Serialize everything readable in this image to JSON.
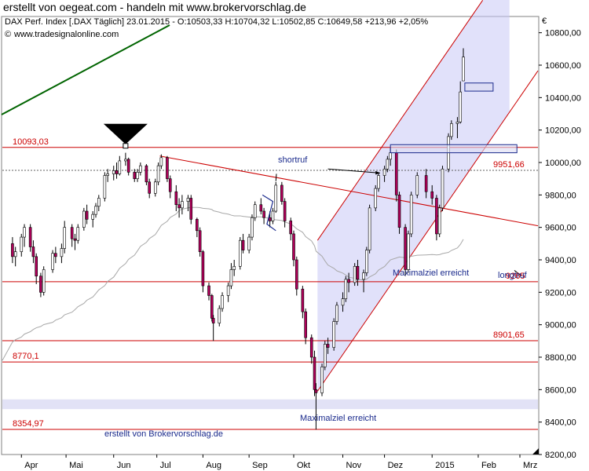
{
  "page_title": "erstellt von oegeat.com - handeln mit www.brokervorschlag.de",
  "chart_data": {
    "type": "candlestick",
    "header": {
      "line1": "DAX Perf. Index [.DAX Täglich] 23.01.2015 - O:10503,33 H:10704,32 L:10502,85 C:10649,58 +213,96 +2,05%",
      "line2": "www.tradesignalonline.com",
      "copyright_symbol": "©"
    },
    "currency_symbol": "€",
    "ylim": [
      8200,
      10900
    ],
    "y_ticks": [
      "8200,00",
      "8400,00",
      "8600,00",
      "8800,00",
      "9000,00",
      "9200,00",
      "9400,00",
      "9600,00",
      "9800,00",
      "10000,00",
      "10200,00",
      "10400,00",
      "10600,00",
      "10800,00"
    ],
    "x_labels": [
      "Apr",
      "Mai",
      "Jun",
      "Jul",
      "Aug",
      "Sep",
      "Okt",
      "Nov",
      "Dez",
      "2015",
      "Feb",
      "Mrz"
    ],
    "levels": [
      {
        "value": 10093.03,
        "label": "10093,03",
        "side": "left"
      },
      {
        "value": 9951.66,
        "label": "9951,66",
        "side": "right"
      },
      {
        "value": 9265,
        "label": "9265",
        "side": "right"
      },
      {
        "value": 8901.65,
        "label": "8901,65",
        "side": "right"
      },
      {
        "value": 8770.1,
        "label": "8770,1",
        "side": "left"
      },
      {
        "value": 8354.97,
        "label": "8354,97",
        "side": "left"
      }
    ],
    "annotations": {
      "shortruf": "shortruf",
      "longtruf": "longtruf",
      "target1": "Maximalziel erreicht",
      "target2": "Maximalziel erreicht",
      "credit": "erstellt von Brokervorschlag.de"
    },
    "colors": {
      "up": "#ffffff",
      "down": "#b0005a",
      "wick": "#000000",
      "level": "#cc0000",
      "channel": "#c8c8f5",
      "trend": "#006400",
      "ma": "#a8a8a8"
    },
    "ohlc": [
      {
        "d": "2014-03-26",
        "o": 9500,
        "h": 9540,
        "l": 9380,
        "c": 9420
      },
      {
        "d": "2014-03-28",
        "o": 9420,
        "h": 9480,
        "l": 9360,
        "c": 9450
      },
      {
        "d": "2014-04-01",
        "o": 9450,
        "h": 9560,
        "l": 9420,
        "c": 9540
      },
      {
        "d": "2014-04-03",
        "o": 9540,
        "h": 9620,
        "l": 9480,
        "c": 9600
      },
      {
        "d": "2014-04-07",
        "o": 9600,
        "h": 9620,
        "l": 9450,
        "c": 9480
      },
      {
        "d": "2014-04-09",
        "o": 9480,
        "h": 9520,
        "l": 9380,
        "c": 9420
      },
      {
        "d": "2014-04-11",
        "o": 9420,
        "h": 9440,
        "l": 9250,
        "c": 9300
      },
      {
        "d": "2014-04-14",
        "o": 9300,
        "h": 9320,
        "l": 9170,
        "c": 9200
      },
      {
        "d": "2014-04-16",
        "o": 9200,
        "h": 9360,
        "l": 9180,
        "c": 9340
      },
      {
        "d": "2014-04-22",
        "o": 9340,
        "h": 9460,
        "l": 9320,
        "c": 9440
      },
      {
        "d": "2014-04-24",
        "o": 9440,
        "h": 9480,
        "l": 9380,
        "c": 9420
      },
      {
        "d": "2014-04-28",
        "o": 9420,
        "h": 9500,
        "l": 9380,
        "c": 9470
      },
      {
        "d": "2014-04-30",
        "o": 9470,
        "h": 9640,
        "l": 9440,
        "c": 9600
      },
      {
        "d": "2014-05-05",
        "o": 9600,
        "h": 9620,
        "l": 9480,
        "c": 9530
      },
      {
        "d": "2014-05-07",
        "o": 9530,
        "h": 9560,
        "l": 9460,
        "c": 9520
      },
      {
        "d": "2014-05-09",
        "o": 9520,
        "h": 9620,
        "l": 9500,
        "c": 9600
      },
      {
        "d": "2014-05-13",
        "o": 9600,
        "h": 9720,
        "l": 9580,
        "c": 9700
      },
      {
        "d": "2014-05-15",
        "o": 9700,
        "h": 9740,
        "l": 9620,
        "c": 9650
      },
      {
        "d": "2014-05-19",
        "o": 9650,
        "h": 9700,
        "l": 9600,
        "c": 9680
      },
      {
        "d": "2014-05-21",
        "o": 9680,
        "h": 9750,
        "l": 9660,
        "c": 9730
      },
      {
        "d": "2014-05-23",
        "o": 9730,
        "h": 9800,
        "l": 9700,
        "c": 9780
      },
      {
        "d": "2014-05-27",
        "o": 9780,
        "h": 9940,
        "l": 9760,
        "c": 9920
      },
      {
        "d": "2014-05-29",
        "o": 9920,
        "h": 9960,
        "l": 9880,
        "c": 9930
      },
      {
        "d": "2014-06-02",
        "o": 9930,
        "h": 9980,
        "l": 9890,
        "c": 9950
      },
      {
        "d": "2014-06-04",
        "o": 9950,
        "h": 10000,
        "l": 9900,
        "c": 9930
      },
      {
        "d": "2014-06-06",
        "o": 9930,
        "h": 10040,
        "l": 9920,
        "c": 10010
      },
      {
        "d": "2014-06-10",
        "o": 10010,
        "h": 10060,
        "l": 9980,
        "c": 10020
      },
      {
        "d": "2014-06-12",
        "o": 10020,
        "h": 10030,
        "l": 9920,
        "c": 9940
      },
      {
        "d": "2014-06-16",
        "o": 9940,
        "h": 9960,
        "l": 9880,
        "c": 9900
      },
      {
        "d": "2014-06-18",
        "o": 9900,
        "h": 9960,
        "l": 9880,
        "c": 9940
      },
      {
        "d": "2014-06-20",
        "o": 9940,
        "h": 10000,
        "l": 9920,
        "c": 9980
      },
      {
        "d": "2014-06-24",
        "o": 9980,
        "h": 9990,
        "l": 9860,
        "c": 9880
      },
      {
        "d": "2014-06-26",
        "o": 9880,
        "h": 9900,
        "l": 9780,
        "c": 9810
      },
      {
        "d": "2014-06-30",
        "o": 9810,
        "h": 9900,
        "l": 9790,
        "c": 9880
      },
      {
        "d": "2014-07-02",
        "o": 9880,
        "h": 10000,
        "l": 9860,
        "c": 9980
      },
      {
        "d": "2014-07-04",
        "o": 9980,
        "h": 10050,
        "l": 9960,
        "c": 10030
      },
      {
        "d": "2014-07-08",
        "o": 10030,
        "h": 10040,
        "l": 9880,
        "c": 9900
      },
      {
        "d": "2014-07-10",
        "o": 9900,
        "h": 9920,
        "l": 9780,
        "c": 9820
      },
      {
        "d": "2014-07-14",
        "o": 9820,
        "h": 9860,
        "l": 9700,
        "c": 9740
      },
      {
        "d": "2014-07-16",
        "o": 9740,
        "h": 9780,
        "l": 9660,
        "c": 9720
      },
      {
        "d": "2014-07-18",
        "o": 9720,
        "h": 9800,
        "l": 9680,
        "c": 9760
      },
      {
        "d": "2014-07-22",
        "o": 9760,
        "h": 9800,
        "l": 9700,
        "c": 9780
      },
      {
        "d": "2014-07-24",
        "o": 9780,
        "h": 9800,
        "l": 9620,
        "c": 9650
      },
      {
        "d": "2014-07-28",
        "o": 9650,
        "h": 9660,
        "l": 9540,
        "c": 9580
      },
      {
        "d": "2014-07-30",
        "o": 9580,
        "h": 9600,
        "l": 9420,
        "c": 9450
      },
      {
        "d": "2014-08-01",
        "o": 9450,
        "h": 9460,
        "l": 9200,
        "c": 9240
      },
      {
        "d": "2014-08-05",
        "o": 9240,
        "h": 9260,
        "l": 9150,
        "c": 9180
      },
      {
        "d": "2014-08-07",
        "o": 9180,
        "h": 9190,
        "l": 9020,
        "c": 9040
      },
      {
        "d": "2014-08-08",
        "o": 9040,
        "h": 9060,
        "l": 8900,
        "c": 9010
      },
      {
        "d": "2014-08-12",
        "o": 9010,
        "h": 9120,
        "l": 8990,
        "c": 9100
      },
      {
        "d": "2014-08-14",
        "o": 9100,
        "h": 9200,
        "l": 9080,
        "c": 9180
      },
      {
        "d": "2014-08-18",
        "o": 9180,
        "h": 9260,
        "l": 9140,
        "c": 9240
      },
      {
        "d": "2014-08-20",
        "o": 9240,
        "h": 9380,
        "l": 9220,
        "c": 9340
      },
      {
        "d": "2014-08-22",
        "o": 9340,
        "h": 9400,
        "l": 9300,
        "c": 9360
      },
      {
        "d": "2014-08-26",
        "o": 9360,
        "h": 9540,
        "l": 9340,
        "c": 9520
      },
      {
        "d": "2014-08-28",
        "o": 9520,
        "h": 9560,
        "l": 9440,
        "c": 9460
      },
      {
        "d": "2014-09-01",
        "o": 9460,
        "h": 9560,
        "l": 9440,
        "c": 9540
      },
      {
        "d": "2014-09-03",
        "o": 9540,
        "h": 9680,
        "l": 9520,
        "c": 9660
      },
      {
        "d": "2014-09-05",
        "o": 9660,
        "h": 9760,
        "l": 9640,
        "c": 9740
      },
      {
        "d": "2014-09-09",
        "o": 9740,
        "h": 9780,
        "l": 9680,
        "c": 9700
      },
      {
        "d": "2014-09-11",
        "o": 9700,
        "h": 9720,
        "l": 9620,
        "c": 9660
      },
      {
        "d": "2014-09-15",
        "o": 9660,
        "h": 9700,
        "l": 9600,
        "c": 9640
      },
      {
        "d": "2014-09-17",
        "o": 9640,
        "h": 9720,
        "l": 9620,
        "c": 9700
      },
      {
        "d": "2014-09-19",
        "o": 9700,
        "h": 9880,
        "l": 9690,
        "c": 9860
      },
      {
        "d": "2014-09-23",
        "o": 9860,
        "h": 9880,
        "l": 9740,
        "c": 9760
      },
      {
        "d": "2014-09-25",
        "o": 9760,
        "h": 9780,
        "l": 9600,
        "c": 9640
      },
      {
        "d": "2014-09-29",
        "o": 9640,
        "h": 9660,
        "l": 9520,
        "c": 9560
      },
      {
        "d": "2014-10-01",
        "o": 9560,
        "h": 9580,
        "l": 9360,
        "c": 9400
      },
      {
        "d": "2014-10-03",
        "o": 9400,
        "h": 9420,
        "l": 9180,
        "c": 9220
      },
      {
        "d": "2014-10-07",
        "o": 9220,
        "h": 9240,
        "l": 9040,
        "c": 9080
      },
      {
        "d": "2014-10-09",
        "o": 9080,
        "h": 9100,
        "l": 8880,
        "c": 8920
      },
      {
        "d": "2014-10-13",
        "o": 8920,
        "h": 8940,
        "l": 8760,
        "c": 8800
      },
      {
        "d": "2014-10-15",
        "o": 8800,
        "h": 8840,
        "l": 8560,
        "c": 8600
      },
      {
        "d": "2014-10-16",
        "o": 8600,
        "h": 8640,
        "l": 8354,
        "c": 8580
      },
      {
        "d": "2014-10-20",
        "o": 8580,
        "h": 8760,
        "l": 8560,
        "c": 8740
      },
      {
        "d": "2014-10-22",
        "o": 8740,
        "h": 8900,
        "l": 8720,
        "c": 8880
      },
      {
        "d": "2014-10-24",
        "o": 8880,
        "h": 8920,
        "l": 8820,
        "c": 8860
      },
      {
        "d": "2014-10-28",
        "o": 8860,
        "h": 9040,
        "l": 8840,
        "c": 9020
      },
      {
        "d": "2014-10-30",
        "o": 9020,
        "h": 9140,
        "l": 9000,
        "c": 9120
      },
      {
        "d": "2014-11-03",
        "o": 9120,
        "h": 9200,
        "l": 9080,
        "c": 9160
      },
      {
        "d": "2014-11-05",
        "o": 9160,
        "h": 9300,
        "l": 9140,
        "c": 9280
      },
      {
        "d": "2014-11-07",
        "o": 9280,
        "h": 9320,
        "l": 9200,
        "c": 9260
      },
      {
        "d": "2014-11-11",
        "o": 9260,
        "h": 9380,
        "l": 9240,
        "c": 9360
      },
      {
        "d": "2014-11-13",
        "o": 9360,
        "h": 9400,
        "l": 9240,
        "c": 9280
      },
      {
        "d": "2014-11-17",
        "o": 9280,
        "h": 9340,
        "l": 9200,
        "c": 9320
      },
      {
        "d": "2014-11-19",
        "o": 9320,
        "h": 9480,
        "l": 9300,
        "c": 9460
      },
      {
        "d": "2014-11-21",
        "o": 9460,
        "h": 9740,
        "l": 9440,
        "c": 9720
      },
      {
        "d": "2014-11-25",
        "o": 9720,
        "h": 9860,
        "l": 9700,
        "c": 9840
      },
      {
        "d": "2014-11-27",
        "o": 9840,
        "h": 9940,
        "l": 9820,
        "c": 9920
      },
      {
        "d": "2014-12-01",
        "o": 9920,
        "h": 9980,
        "l": 9880,
        "c": 9960
      },
      {
        "d": "2014-12-03",
        "o": 9960,
        "h": 10040,
        "l": 9940,
        "c": 10020
      },
      {
        "d": "2014-12-05",
        "o": 10020,
        "h": 10090,
        "l": 9980,
        "c": 10060
      },
      {
        "d": "2014-12-09",
        "o": 10060,
        "h": 10080,
        "l": 9760,
        "c": 9800
      },
      {
        "d": "2014-12-11",
        "o": 9800,
        "h": 9820,
        "l": 9560,
        "c": 9600
      },
      {
        "d": "2014-12-15",
        "o": 9600,
        "h": 9620,
        "l": 9300,
        "c": 9340
      },
      {
        "d": "2014-12-17",
        "o": 9340,
        "h": 9580,
        "l": 9320,
        "c": 9560
      },
      {
        "d": "2014-12-19",
        "o": 9560,
        "h": 9820,
        "l": 9540,
        "c": 9800
      },
      {
        "d": "2014-12-23",
        "o": 9800,
        "h": 9940,
        "l": 9780,
        "c": 9920
      },
      {
        "d": "2014-12-29",
        "o": 9920,
        "h": 9960,
        "l": 9780,
        "c": 9820
      },
      {
        "d": "2015-01-02",
        "o": 9820,
        "h": 9860,
        "l": 9740,
        "c": 9780
      },
      {
        "d": "2015-01-05",
        "o": 9780,
        "h": 9800,
        "l": 9520,
        "c": 9560
      },
      {
        "d": "2015-01-07",
        "o": 9560,
        "h": 9740,
        "l": 9540,
        "c": 9720
      },
      {
        "d": "2015-01-09",
        "o": 9720,
        "h": 9980,
        "l": 9700,
        "c": 9960
      },
      {
        "d": "2015-01-13",
        "o": 9960,
        "h": 10180,
        "l": 9940,
        "c": 10160
      },
      {
        "d": "2015-01-15",
        "o": 10160,
        "h": 10260,
        "l": 10140,
        "c": 10240
      },
      {
        "d": "2015-01-19",
        "o": 10240,
        "h": 10280,
        "l": 10150,
        "c": 10250
      },
      {
        "d": "2015-01-21",
        "o": 10250,
        "h": 10500,
        "l": 10240,
        "c": 10435
      },
      {
        "d": "2015-01-23",
        "o": 10503,
        "h": 10704,
        "l": 10503,
        "c": 10650
      }
    ]
  }
}
